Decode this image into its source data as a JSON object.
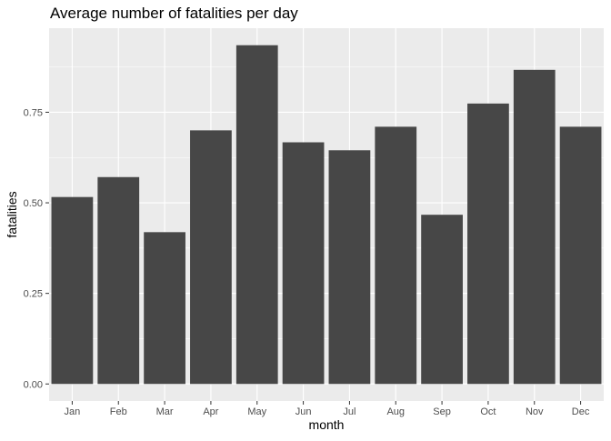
{
  "chart_data": {
    "type": "bar",
    "title": "Average number of fatalities per day",
    "xlabel": "month",
    "ylabel": "fatalities",
    "categories": [
      "Jan",
      "Feb",
      "Mar",
      "Apr",
      "May",
      "Jun",
      "Jul",
      "Aug",
      "Sep",
      "Oct",
      "Nov",
      "Dec"
    ],
    "values": [
      0.516,
      0.571,
      0.419,
      0.7,
      0.935,
      0.667,
      0.645,
      0.71,
      0.467,
      0.774,
      0.867,
      0.71
    ],
    "yticks": [
      0.0,
      0.25,
      0.5,
      0.75
    ],
    "ytick_labels": [
      "0.00",
      "0.25",
      "0.50",
      "0.75"
    ],
    "ylim": [
      -0.047,
      0.982
    ],
    "grid": true,
    "legend": "none",
    "colors": {
      "bar": "#474747",
      "panel": "#ebebeb",
      "grid": "#ffffff",
      "background": "#ffffff"
    }
  }
}
